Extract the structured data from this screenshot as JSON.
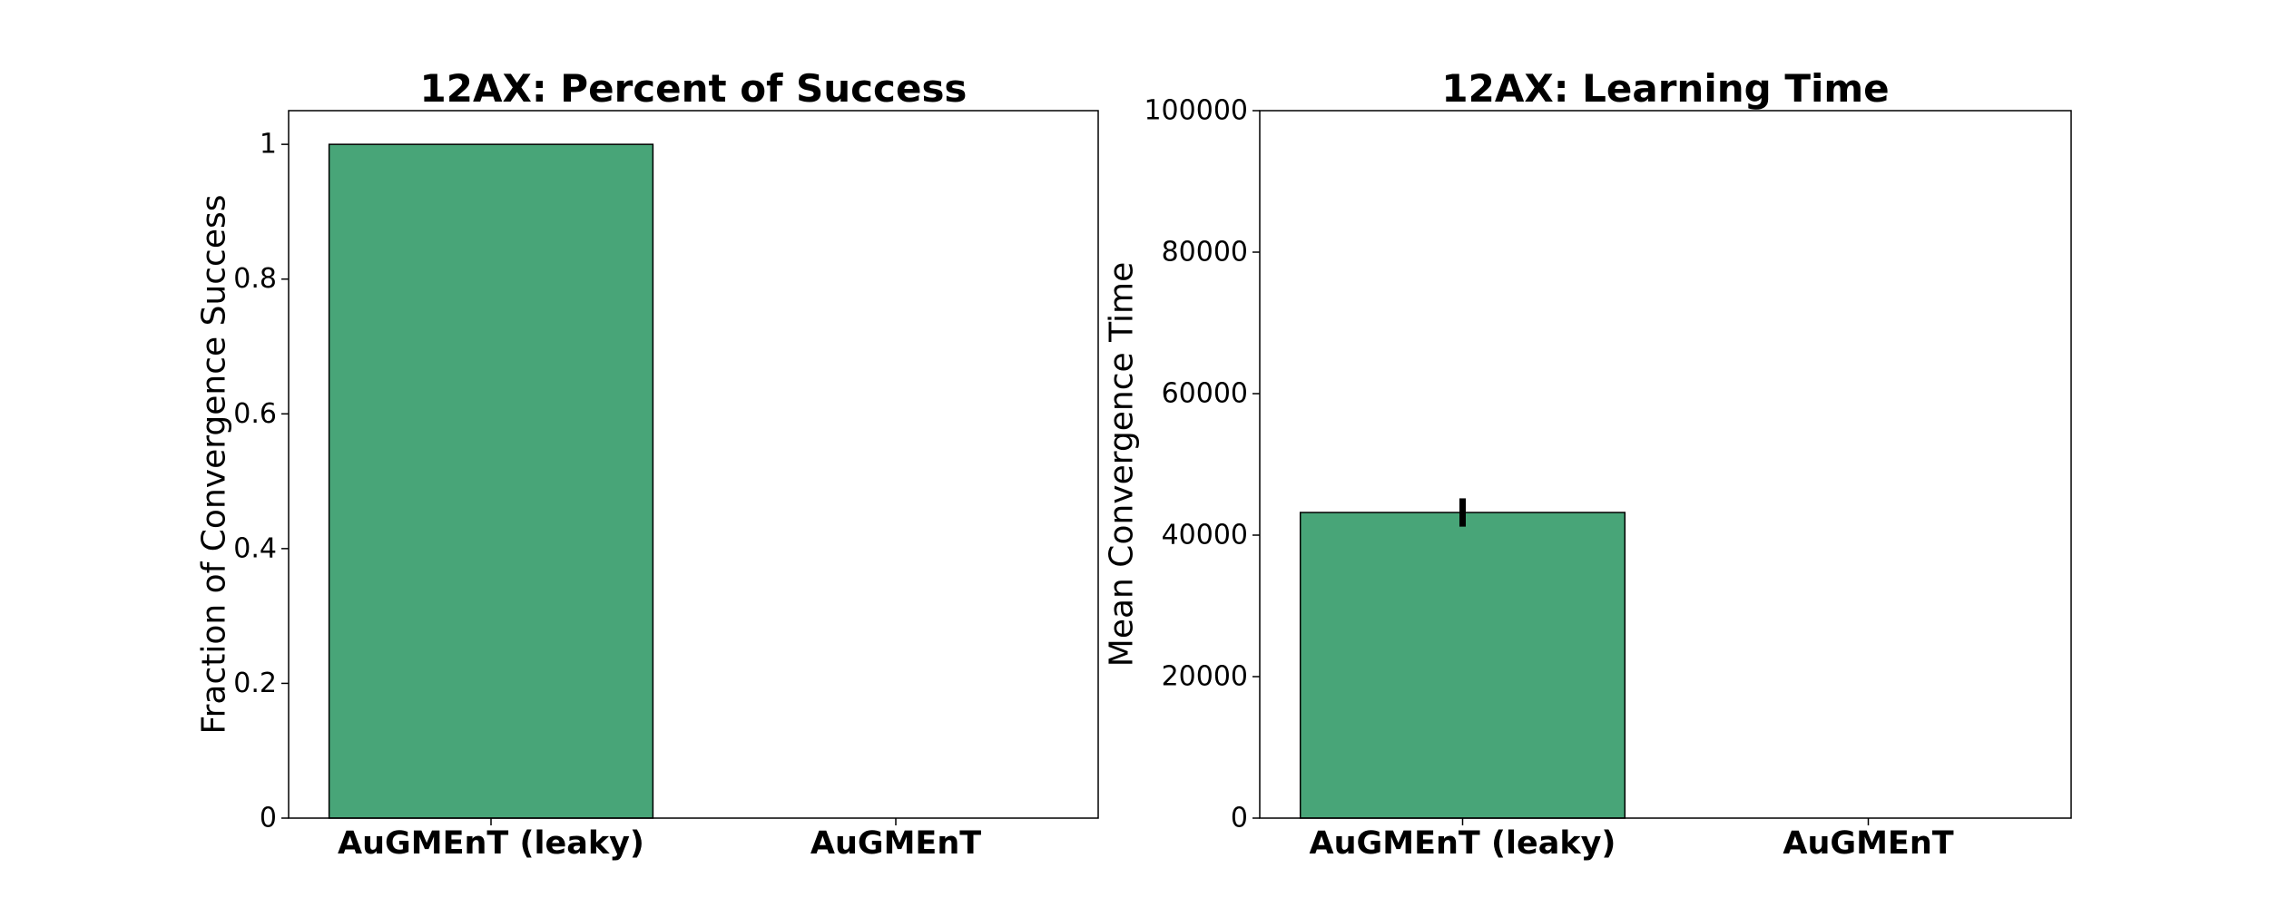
{
  "chart_data": [
    {
      "type": "bar",
      "title": "12AX: Percent of Success",
      "xlabel": "",
      "ylabel": "Fraction of Convergence Success",
      "categories": [
        "AuGMEnT (leaky)",
        "AuGMEnT"
      ],
      "values": [
        1.0,
        0.0
      ],
      "ylim": [
        0,
        1.05
      ],
      "yticks": [
        0,
        0.2,
        0.4,
        0.6,
        0.8,
        1
      ],
      "ytick_labels": [
        "0",
        "0.2",
        "0.4",
        "0.6",
        "0.8",
        "1"
      ],
      "bar_color": "#48a578",
      "grid": false
    },
    {
      "type": "bar",
      "title": "12AX: Learning Time",
      "xlabel": "",
      "ylabel": "Mean Convergence Time",
      "categories": [
        "AuGMEnT (leaky)",
        "AuGMEnT"
      ],
      "values": [
        43200,
        0
      ],
      "errors": [
        2000,
        0
      ],
      "ylim": [
        0,
        100000
      ],
      "yticks": [
        0,
        20000,
        40000,
        60000,
        80000,
        100000
      ],
      "ytick_labels": [
        "0",
        "20000",
        "40000",
        "60000",
        "80000",
        "100000"
      ],
      "bar_color": "#48a578",
      "grid": false
    }
  ]
}
